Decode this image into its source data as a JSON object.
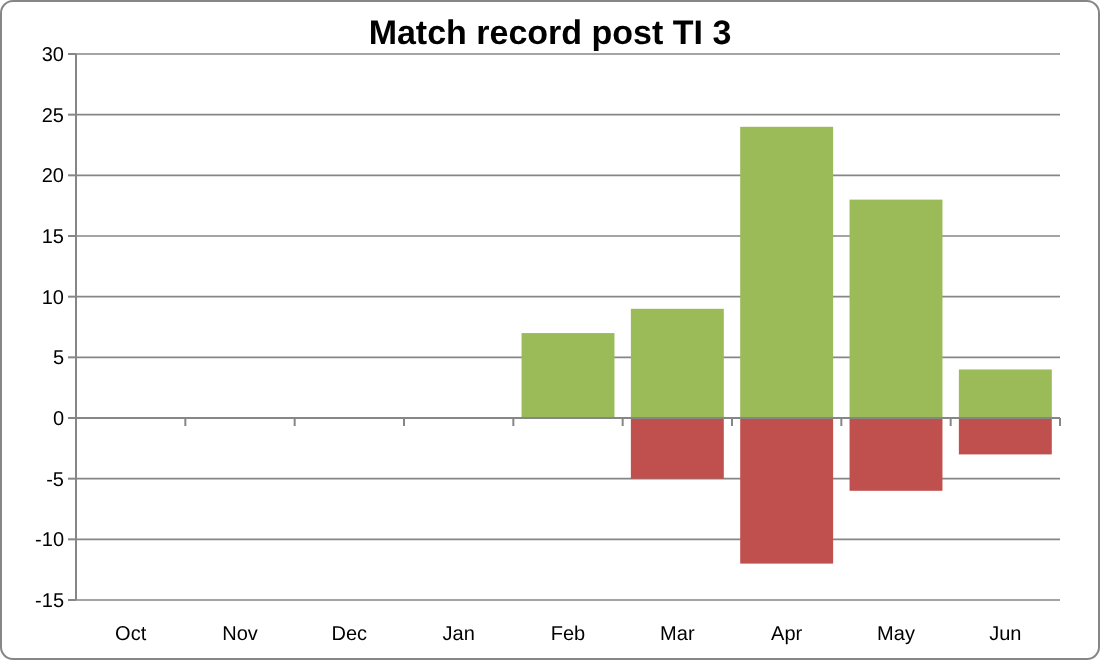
{
  "chart_data": {
    "type": "bar",
    "title": "Match record post TI 3",
    "stacked": true,
    "grid": "y",
    "categories": [
      "Oct",
      "Nov",
      "Dec",
      "Jan",
      "Feb",
      "Mar",
      "Apr",
      "May",
      "Jun"
    ],
    "series": [
      {
        "color": "#9bbb59",
        "values": [
          null,
          null,
          null,
          null,
          7,
          9,
          24,
          18,
          4
        ]
      },
      {
        "color": "#c0504d",
        "values": [
          null,
          null,
          null,
          null,
          null,
          -5,
          -12,
          -6,
          -3
        ]
      }
    ],
    "ylim": [
      -15,
      30
    ],
    "yticks": [
      -15,
      -10,
      -5,
      0,
      5,
      10,
      15,
      20,
      25,
      30
    ]
  }
}
